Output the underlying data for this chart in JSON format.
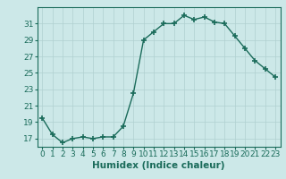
{
  "x": [
    0,
    1,
    2,
    3,
    4,
    5,
    6,
    7,
    8,
    9,
    10,
    11,
    12,
    13,
    14,
    15,
    16,
    17,
    18,
    19,
    20,
    21,
    22,
    23
  ],
  "y": [
    19.5,
    17.5,
    16.5,
    17.0,
    17.2,
    17.0,
    17.2,
    17.2,
    18.5,
    22.5,
    29.0,
    30.0,
    31.0,
    31.0,
    32.0,
    31.5,
    31.8,
    31.2,
    31.0,
    29.5,
    28.0,
    26.5,
    25.5,
    24.5
  ],
  "line_color": "#1a6b5a",
  "marker": "+",
  "marker_size": 5,
  "bg_color": "#cce8e8",
  "grid_color": "#b0d0d0",
  "xlabel": "Humidex (Indice chaleur)",
  "xlabel_fontsize": 7.5,
  "xlim": [
    -0.5,
    23.5
  ],
  "ylim": [
    16.0,
    33.0
  ],
  "yticks": [
    17,
    19,
    21,
    23,
    25,
    27,
    29,
    31
  ],
  "xticks": [
    0,
    1,
    2,
    3,
    4,
    5,
    6,
    7,
    8,
    9,
    10,
    11,
    12,
    13,
    14,
    15,
    16,
    17,
    18,
    19,
    20,
    21,
    22,
    23
  ],
  "tick_fontsize": 6.5,
  "tick_color": "#1a6b5a",
  "spine_color": "#1a6b5a",
  "linewidth": 1.0,
  "marker_color": "#1a6b5a"
}
